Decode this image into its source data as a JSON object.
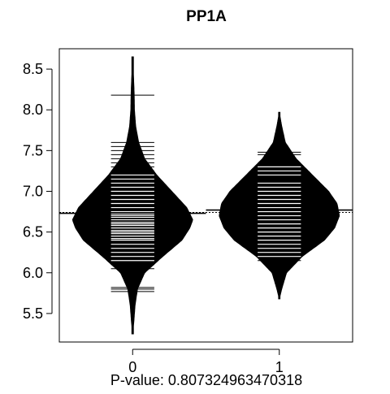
{
  "chart_data": {
    "type": "beanplot",
    "title": "PP1A",
    "xlabel": "P-value: 0.807324963470318",
    "ylabel": "",
    "categories": [
      "0",
      "1"
    ],
    "ylim": [
      5.15,
      8.75
    ],
    "yticks": [
      "5.5",
      "6.0",
      "6.5",
      "7.0",
      "7.5",
      "8.0",
      "8.5"
    ],
    "overall_mean": 6.74,
    "groups": [
      {
        "name": "0",
        "mean": 6.73,
        "range": [
          5.25,
          8.65
        ],
        "density": [
          [
            5.25,
            0.0
          ],
          [
            5.4,
            0.02
          ],
          [
            5.6,
            0.04
          ],
          [
            5.8,
            0.08
          ],
          [
            6.0,
            0.2
          ],
          [
            6.2,
            0.5
          ],
          [
            6.4,
            0.82
          ],
          [
            6.55,
            0.95
          ],
          [
            6.65,
            1.0
          ],
          [
            6.8,
            0.9
          ],
          [
            7.0,
            0.65
          ],
          [
            7.2,
            0.4
          ],
          [
            7.4,
            0.2
          ],
          [
            7.6,
            0.1
          ],
          [
            7.8,
            0.05
          ],
          [
            8.0,
            0.03
          ],
          [
            8.2,
            0.025
          ],
          [
            8.4,
            0.015
          ],
          [
            8.65,
            0.0
          ]
        ],
        "observations": [
          5.77,
          5.8,
          5.82,
          6.05,
          6.1,
          6.15,
          6.2,
          6.25,
          6.3,
          6.35,
          6.4,
          6.42,
          6.45,
          6.48,
          6.5,
          6.52,
          6.55,
          6.58,
          6.6,
          6.62,
          6.65,
          6.68,
          6.7,
          6.72,
          6.75,
          6.8,
          6.85,
          6.9,
          6.95,
          7.0,
          7.05,
          7.1,
          7.15,
          7.2,
          7.25,
          7.3,
          7.35,
          7.4,
          7.45,
          7.5,
          7.55,
          7.6,
          8.18
        ]
      },
      {
        "name": "1",
        "mean": 6.77,
        "range": [
          5.68,
          7.97
        ],
        "density": [
          [
            5.68,
            0.0
          ],
          [
            5.8,
            0.04
          ],
          [
            6.0,
            0.12
          ],
          [
            6.2,
            0.38
          ],
          [
            6.4,
            0.75
          ],
          [
            6.55,
            0.92
          ],
          [
            6.7,
            1.0
          ],
          [
            6.85,
            0.96
          ],
          [
            7.0,
            0.82
          ],
          [
            7.2,
            0.55
          ],
          [
            7.4,
            0.28
          ],
          [
            7.6,
            0.1
          ],
          [
            7.8,
            0.04
          ],
          [
            7.97,
            0.0
          ]
        ],
        "observations": [
          6.15,
          6.2,
          6.25,
          6.3,
          6.35,
          6.4,
          6.45,
          6.5,
          6.55,
          6.6,
          6.65,
          6.7,
          6.75,
          6.8,
          6.85,
          6.9,
          6.95,
          7.0,
          7.05,
          7.1,
          7.2,
          7.25,
          7.3,
          7.45,
          7.48
        ]
      }
    ]
  }
}
